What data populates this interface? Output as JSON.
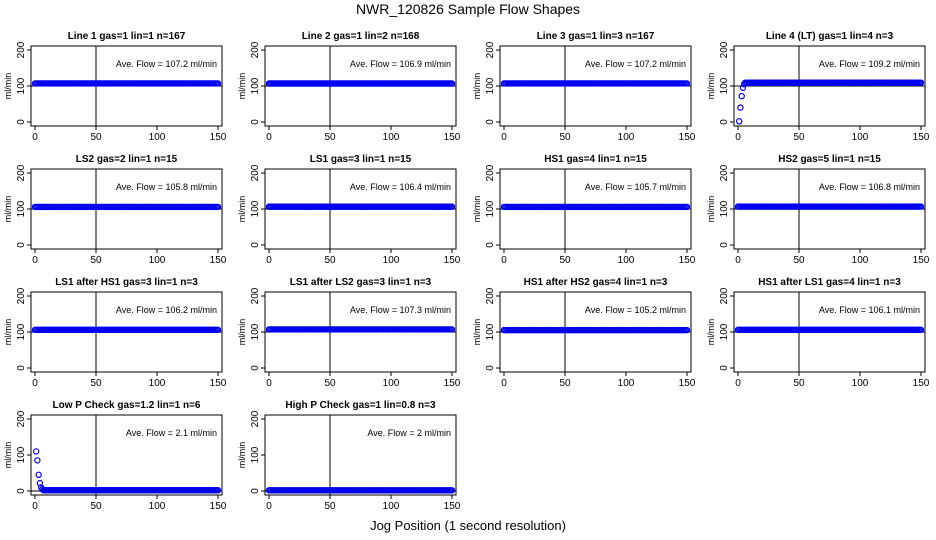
{
  "figure": {
    "title": "NWR_120826  Sample Flow Shapes",
    "xlabel": "Jog Position (1 second resolution)"
  },
  "colors": {
    "points": "#0000ee",
    "axes": "#000000"
  },
  "chart_data": [
    {
      "type": "scatter",
      "title": "Line 1 gas=1 lin=1 n=167",
      "annotation": "Ave. Flow = 107.2  ml/min",
      "ylabel": "ml/min",
      "xlim": [
        0,
        150
      ],
      "ylim": [
        0,
        200
      ],
      "xticks": [
        0,
        50,
        100,
        150
      ],
      "yticks": [
        0,
        100,
        200
      ],
      "vline": 50,
      "hline": 100,
      "y_const": 107.2,
      "startup": []
    },
    {
      "type": "scatter",
      "title": "Line 2 gas=1 lin=2 n=168",
      "annotation": "Ave. Flow = 106.9  ml/min",
      "ylabel": "ml/min",
      "xlim": [
        0,
        150
      ],
      "ylim": [
        0,
        200
      ],
      "xticks": [
        0,
        50,
        100,
        150
      ],
      "yticks": [
        0,
        100,
        200
      ],
      "vline": 50,
      "hline": 100,
      "y_const": 106.9,
      "startup": []
    },
    {
      "type": "scatter",
      "title": "Line 3 gas=1 lin=3 n=167",
      "annotation": "Ave. Flow = 107.2  ml/min",
      "ylabel": "ml/min",
      "xlim": [
        0,
        150
      ],
      "ylim": [
        0,
        200
      ],
      "xticks": [
        0,
        50,
        100,
        150
      ],
      "yticks": [
        0,
        100,
        200
      ],
      "vline": 50,
      "hline": 100,
      "y_const": 107.2,
      "startup": []
    },
    {
      "type": "scatter",
      "title": "Line 4 (LT) gas=1 lin=4 n=3",
      "annotation": "Ave. Flow = 109.2  ml/min",
      "ylabel": "ml/min",
      "xlim": [
        0,
        150
      ],
      "ylim": [
        0,
        200
      ],
      "xticks": [
        0,
        50,
        100,
        150
      ],
      "yticks": [
        0,
        100,
        200
      ],
      "vline": 50,
      "hline": 100,
      "y_const": 109.2,
      "startup": [
        [
          1,
          2
        ],
        [
          2,
          40
        ],
        [
          3,
          72
        ],
        [
          4,
          95
        ],
        [
          5,
          105
        ]
      ]
    },
    {
      "type": "scatter",
      "title": "LS2 gas=2 lin=1 n=15",
      "annotation": "Ave. Flow = 105.8  ml/min",
      "ylabel": "ml/min",
      "xlim": [
        0,
        150
      ],
      "ylim": [
        0,
        200
      ],
      "xticks": [
        0,
        50,
        100,
        150
      ],
      "yticks": [
        0,
        100,
        200
      ],
      "vline": 50,
      "hline": 100,
      "y_const": 105.8,
      "startup": []
    },
    {
      "type": "scatter",
      "title": "LS1 gas=3 lin=1 n=15",
      "annotation": "Ave. Flow = 106.4  ml/min",
      "ylabel": "ml/min",
      "xlim": [
        0,
        150
      ],
      "ylim": [
        0,
        200
      ],
      "xticks": [
        0,
        50,
        100,
        150
      ],
      "yticks": [
        0,
        100,
        200
      ],
      "vline": 50,
      "hline": 100,
      "y_const": 106.4,
      "startup": []
    },
    {
      "type": "scatter",
      "title": "HS1 gas=4 lin=1 n=15",
      "annotation": "Ave. Flow = 105.7  ml/min",
      "ylabel": "ml/min",
      "xlim": [
        0,
        150
      ],
      "ylim": [
        0,
        200
      ],
      "xticks": [
        0,
        50,
        100,
        150
      ],
      "yticks": [
        0,
        100,
        200
      ],
      "vline": 50,
      "hline": 100,
      "y_const": 105.7,
      "startup": []
    },
    {
      "type": "scatter",
      "title": "HS2 gas=5 lin=1 n=15",
      "annotation": "Ave. Flow = 106.8  ml/min",
      "ylabel": "ml/min",
      "xlim": [
        0,
        150
      ],
      "ylim": [
        0,
        200
      ],
      "xticks": [
        0,
        50,
        100,
        150
      ],
      "yticks": [
        0,
        100,
        200
      ],
      "vline": 50,
      "hline": 100,
      "y_const": 106.8,
      "startup": []
    },
    {
      "type": "scatter",
      "title": "LS1 after HS1 gas=3 lin=1 n=3",
      "annotation": "Ave. Flow = 106.2  ml/min",
      "ylabel": "ml/min",
      "xlim": [
        0,
        150
      ],
      "ylim": [
        0,
        200
      ],
      "xticks": [
        0,
        50,
        100,
        150
      ],
      "yticks": [
        0,
        100,
        200
      ],
      "vline": 50,
      "hline": 100,
      "y_const": 106.2,
      "startup": []
    },
    {
      "type": "scatter",
      "title": "LS1 after LS2 gas=3 lin=1 n=3",
      "annotation": "Ave. Flow = 107.3  ml/min",
      "ylabel": "ml/min",
      "xlim": [
        0,
        150
      ],
      "ylim": [
        0,
        200
      ],
      "xticks": [
        0,
        50,
        100,
        150
      ],
      "yticks": [
        0,
        100,
        200
      ],
      "vline": 50,
      "hline": 100,
      "y_const": 107.3,
      "startup": []
    },
    {
      "type": "scatter",
      "title": "HS1 after HS2 gas=4 lin=1 n=3",
      "annotation": "Ave. Flow = 105.2  ml/min",
      "ylabel": "ml/min",
      "xlim": [
        0,
        150
      ],
      "ylim": [
        0,
        200
      ],
      "xticks": [
        0,
        50,
        100,
        150
      ],
      "yticks": [
        0,
        100,
        200
      ],
      "vline": 50,
      "hline": 100,
      "y_const": 105.2,
      "startup": []
    },
    {
      "type": "scatter",
      "title": "HS1 after LS1 gas=4 lin=1 n=3",
      "annotation": "Ave. Flow = 106.1  ml/min",
      "ylabel": "ml/min",
      "xlim": [
        0,
        150
      ],
      "ylim": [
        0,
        200
      ],
      "xticks": [
        0,
        50,
        100,
        150
      ],
      "yticks": [
        0,
        100,
        200
      ],
      "vline": 50,
      "hline": 100,
      "y_const": 106.1,
      "startup": []
    },
    {
      "type": "scatter",
      "title": "Low P Check gas=1.2 lin=1 n=6",
      "annotation": "Ave. Flow =  2.1  ml/min",
      "ylabel": "ml/min",
      "xlim": [
        0,
        150
      ],
      "ylim": [
        0,
        200
      ],
      "xticks": [
        0,
        50,
        100,
        150
      ],
      "yticks": [
        0,
        100,
        200
      ],
      "vline": 50,
      "hline": 0,
      "y_const": 2.1,
      "startup": [
        [
          1,
          110
        ],
        [
          2,
          85
        ],
        [
          3,
          45
        ],
        [
          4,
          22
        ],
        [
          5,
          10
        ],
        [
          6,
          5
        ]
      ]
    },
    {
      "type": "scatter",
      "title": "High P Check gas=1 lin=0.8 n=3",
      "annotation": "Ave. Flow =  2  ml/min",
      "ylabel": "ml/min",
      "xlim": [
        0,
        150
      ],
      "ylim": [
        0,
        200
      ],
      "xticks": [
        0,
        50,
        100,
        150
      ],
      "yticks": [
        0,
        100,
        200
      ],
      "vline": 50,
      "hline": 0,
      "y_const": 2,
      "startup": []
    }
  ]
}
